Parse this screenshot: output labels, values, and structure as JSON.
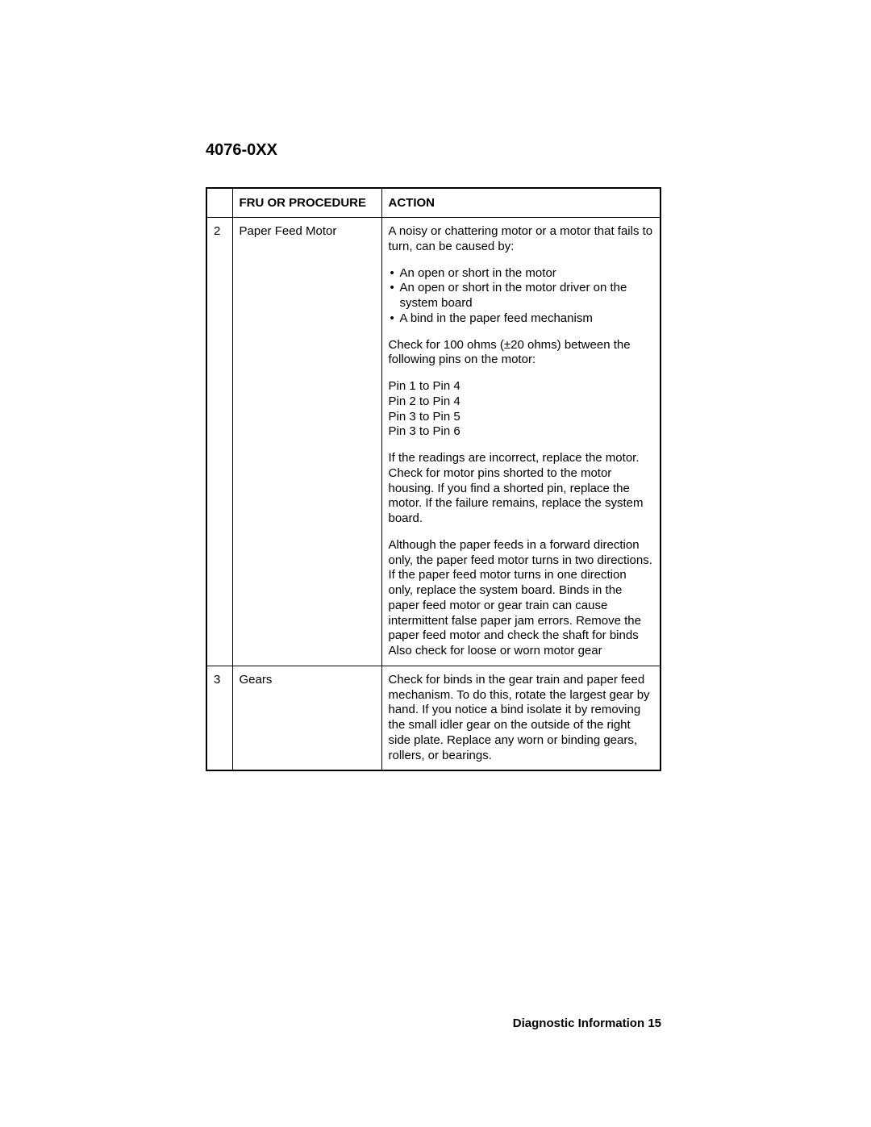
{
  "page": {
    "header": "4076-0XX",
    "footer_label": "Diagnostic Information",
    "footer_page": "15"
  },
  "table": {
    "columns": {
      "num": "",
      "fru": "FRU OR PROCEDURE",
      "action": "ACTION"
    },
    "rows": [
      {
        "num": "2",
        "fru": "Paper Feed Motor",
        "action": {
          "intro": "A noisy or chattering motor or a motor that fails to turn, can be caused by:",
          "bullets": [
            "An open or short in the motor",
            "An open or short in the motor driver on the system board",
            "A bind in the paper feed mechanism"
          ],
          "check_text": "Check for 100 ohms (±20 ohms) between the following pins on the motor:",
          "pins": [
            "Pin 1 to Pin 4",
            "Pin 2 to Pin 4",
            "Pin 3 to Pin 5",
            "Pin 3 to Pin 6"
          ],
          "para1": "If the readings are incorrect, replace the motor. Check for motor pins shorted to the motor housing. If you find a shorted pin, replace the motor. If the failure remains, replace the system board.",
          "para2": "Although the paper feeds in a forward direction only, the paper feed motor turns in two directions. If the paper feed motor turns in one direction only, replace the system board. Binds in the paper feed motor or gear train can cause intermittent false paper jam errors. Remove the paper feed motor and check the shaft for binds Also check for loose or worn motor gear"
        }
      },
      {
        "num": "3",
        "fru": "Gears",
        "action_text": "Check for binds in the gear train and paper feed mechanism. To do this, rotate the largest gear by hand. If you notice a bind isolate it by removing the small idler gear on the outside of the right side plate. Replace any worn or binding gears, rollers, or bearings."
      }
    ]
  }
}
